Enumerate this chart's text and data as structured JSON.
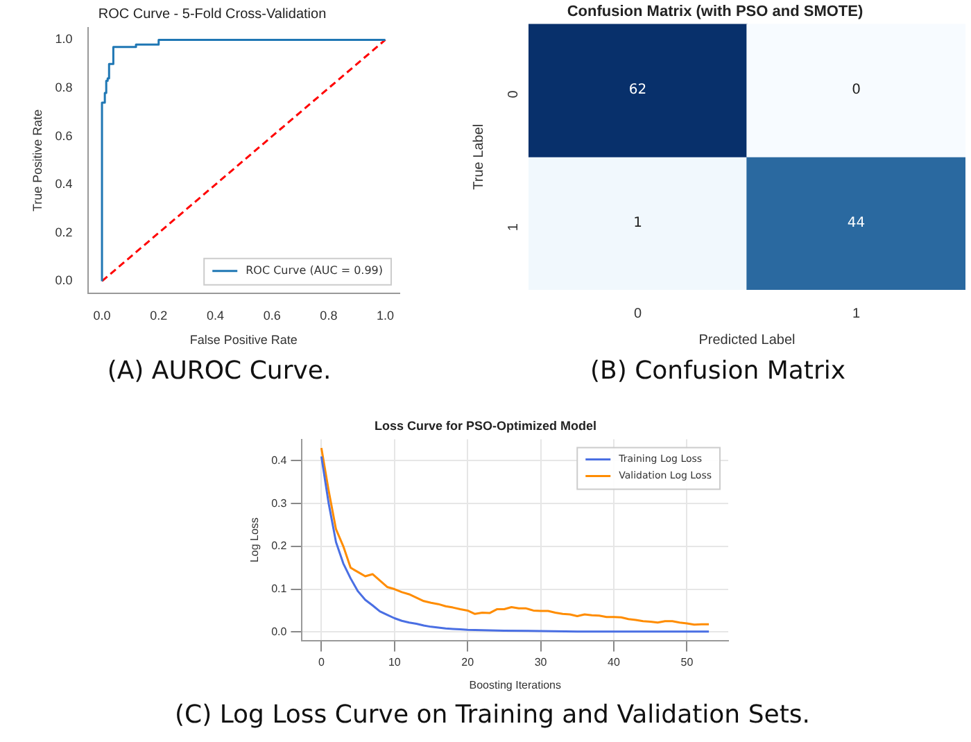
{
  "chart_data": [
    {
      "type": "line",
      "title": "ROC Curve - 5-Fold Cross-Validation",
      "xlabel": "False Positive Rate",
      "ylabel": "True Positive Rate",
      "annotations": [
        "(A) AUROC Curve."
      ],
      "xlim": [
        -0.05,
        1.05
      ],
      "ylim": [
        -0.05,
        1.05
      ],
      "xticks": [
        {
          "value": 0,
          "label": "0.0"
        },
        {
          "value": 0.2,
          "label": "0.2"
        },
        {
          "value": 0.4,
          "label": "0.4"
        },
        {
          "value": 0.6,
          "label": "0.6"
        },
        {
          "value": 0.8,
          "label": "0.8"
        },
        {
          "value": 1,
          "label": "1.0"
        }
      ],
      "yticks": [
        {
          "value": 0,
          "label": "0.0"
        },
        {
          "value": 0.2,
          "label": "0.2"
        },
        {
          "value": 0.4,
          "label": "0.4"
        },
        {
          "value": 0.6,
          "label": "0.6"
        },
        {
          "value": 0.8,
          "label": "0.8"
        },
        {
          "value": 1,
          "label": "1.0"
        }
      ],
      "grid": false,
      "legend": "bottom right",
      "marker": "none",
      "series": [
        {
          "name": "ROC Curve (AUC = 0.99)",
          "color": "#1f77b4",
          "line_style": "solid",
          "x": [
            0,
            0,
            0.01,
            0.01,
            0.015,
            0.015,
            0.02,
            0.02,
            0.025,
            0.025,
            0.04,
            0.04,
            0.12,
            0.12,
            0.2,
            0.2,
            1
          ],
          "values": [
            0,
            0.74,
            0.74,
            0.78,
            0.78,
            0.83,
            0.83,
            0.84,
            0.84,
            0.9,
            0.9,
            0.97,
            0.97,
            0.98,
            0.98,
            1,
            1
          ]
        },
        {
          "color": "#ff0000",
          "line_style": "dashed",
          "x": [
            0,
            1
          ],
          "values": [
            0,
            1
          ]
        }
      ]
    },
    {
      "type": "heatmap",
      "title": "Confusion Matrix (with PSO and SMOTE)",
      "xlabel": "Predicted Label",
      "ylabel": "True Label",
      "annotations": [
        "(B) Confusion Matrix"
      ],
      "categories": [
        "0",
        "1"
      ],
      "y_categories": [
        "0",
        "1"
      ],
      "cells": [
        [
          62,
          0
        ],
        [
          1,
          44
        ]
      ],
      "data_labels": true
    },
    {
      "type": "line",
      "title": "Loss Curve for PSO-Optimized Model",
      "xlabel": "Boosting Iterations",
      "ylabel": "Log Loss",
      "annotations": [
        "(C) Log Loss Curve on Training and Validation Sets."
      ],
      "xlim": [
        -2.65,
        55.65
      ],
      "ylim": [
        -0.02,
        0.45
      ],
      "xticks": [
        0,
        10,
        20,
        30,
        40,
        50
      ],
      "yticks": [
        {
          "value": 0,
          "label": "0.0"
        },
        {
          "value": 0.1,
          "label": "0.1"
        },
        {
          "value": 0.2,
          "label": "0.2"
        },
        {
          "value": 0.3,
          "label": "0.3"
        },
        {
          "value": 0.4,
          "label": "0.4"
        }
      ],
      "grid": true,
      "legend": "top right",
      "marker": "none",
      "series": [
        {
          "name": "Training Log Loss",
          "color": "#4a6fe3",
          "x": [
            0,
            1,
            2,
            3,
            4,
            5,
            6,
            7,
            8,
            9,
            10,
            11,
            12,
            13,
            14,
            15,
            16,
            17,
            18,
            19,
            20,
            22,
            25,
            30,
            35,
            40,
            45,
            53
          ],
          "values": [
            0.41,
            0.3,
            0.21,
            0.16,
            0.125,
            0.095,
            0.075,
            0.062,
            0.048,
            0.04,
            0.032,
            0.026,
            0.022,
            0.019,
            0.015,
            0.012,
            0.01,
            0.008,
            0.007,
            0.006,
            0.005,
            0.004,
            0.003,
            0.002,
            0.001,
            0.001,
            0.001,
            0.001
          ]
        },
        {
          "name": "Validation Log Loss",
          "color": "#ff8c00",
          "x": [
            0,
            1,
            2,
            3,
            4,
            5,
            6,
            7,
            8,
            9,
            10,
            11,
            12,
            13,
            14,
            15,
            16,
            17,
            18,
            19,
            20,
            21,
            22,
            23,
            24,
            25,
            26,
            27,
            28,
            29,
            30,
            31,
            32,
            33,
            34,
            35,
            36,
            37,
            38,
            39,
            40,
            41,
            42,
            43,
            44,
            45,
            46,
            47,
            48,
            49,
            50,
            51,
            52,
            53
          ],
          "values": [
            0.43,
            0.33,
            0.24,
            0.2,
            0.15,
            0.14,
            0.13,
            0.135,
            0.12,
            0.105,
            0.1,
            0.093,
            0.088,
            0.08,
            0.072,
            0.068,
            0.065,
            0.06,
            0.057,
            0.053,
            0.05,
            0.042,
            0.045,
            0.044,
            0.053,
            0.053,
            0.058,
            0.055,
            0.055,
            0.05,
            0.049,
            0.049,
            0.045,
            0.042,
            0.041,
            0.037,
            0.041,
            0.039,
            0.038,
            0.035,
            0.035,
            0.034,
            0.03,
            0.028,
            0.025,
            0.024,
            0.022,
            0.025,
            0.025,
            0.022,
            0.02,
            0.017,
            0.018,
            0.018
          ]
        }
      ]
    }
  ]
}
